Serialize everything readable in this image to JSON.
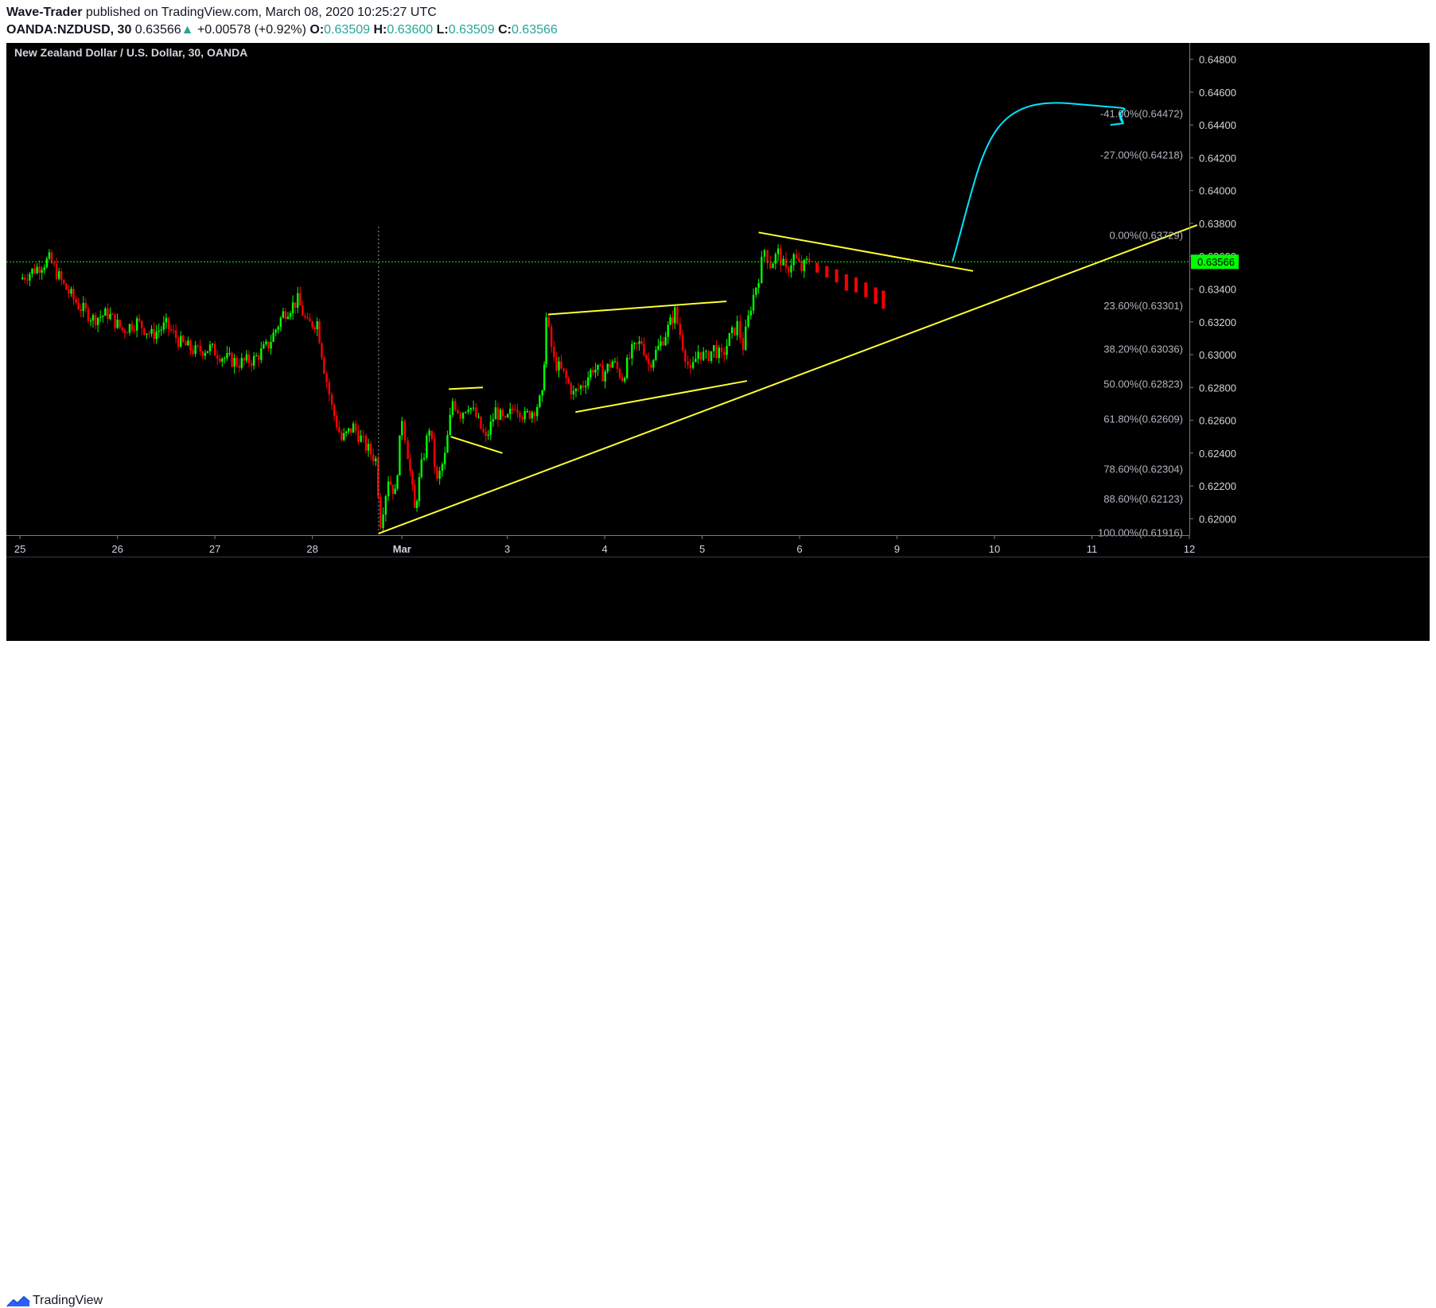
{
  "header": {
    "author": "Wave-Trader",
    "published_text": "published on TradingView.com, March 08, 2020 10:25:27 UTC",
    "symbol": "OANDA:NZDUSD, 30",
    "last": "0.63566",
    "arrow": "▲",
    "change": "+0.00578 (+0.92%)",
    "o_label": "O:",
    "o_value": "0.63509",
    "h_label": "H:",
    "h_value": "0.63600",
    "l_label": "L:",
    "l_value": "0.63509",
    "c_label": "C:",
    "c_value": "0.63566"
  },
  "footer": {
    "brand": "TradingView",
    "logo_icon": "tradingview-logo-icon"
  },
  "chart_data": {
    "type": "candlestick",
    "title": "New Zealand Dollar / U.S. Dollar, 30, OANDA",
    "colors": {
      "background": "#000000",
      "up": "#00ff00",
      "down": "#ff0000",
      "trendline": "#ffff33",
      "arrow": "#00e5ff",
      "price_line": "#00ff00",
      "price_tag": "#00ff00",
      "fib_text": "#b2b5be",
      "axis_text": "#d1d4dc"
    },
    "current_price": {
      "value": 0.63566,
      "label": "0.63566"
    },
    "y_axis": {
      "range": [
        0.619,
        0.649
      ],
      "ticks": [
        0.648,
        0.646,
        0.644,
        0.642,
        0.64,
        0.638,
        0.636,
        0.634,
        0.632,
        0.63,
        0.628,
        0.626,
        0.624,
        0.622,
        0.62
      ],
      "tick_labels": [
        "0.64800",
        "0.64600",
        "0.64400",
        "0.64200",
        "0.64000",
        "0.63800",
        "0.63600",
        "0.63400",
        "0.63200",
        "0.63000",
        "0.62800",
        "0.62600",
        "0.62400",
        "0.62200",
        "0.62000"
      ]
    },
    "x_axis": {
      "range": [
        -0.14,
        12.0
      ],
      "tick_values": [
        0,
        1,
        2,
        3,
        3.92,
        5,
        6,
        7,
        8,
        9,
        10,
        11,
        12
      ],
      "tick_labels": [
        "25",
        "26",
        "27",
        "28",
        "Mar",
        "3",
        "4",
        "5",
        "6",
        "9",
        "10",
        "11",
        "12"
      ],
      "note_days": "x is trading-day index: 0 = Feb 25; gap over weekend"
    },
    "fib_levels": [
      {
        "label": "-41.00%(0.64472)",
        "price": 0.64472
      },
      {
        "label": "-27.00%(0.64218)",
        "price": 0.64218
      },
      {
        "label": "0.00%(0.63729)",
        "price": 0.63729
      },
      {
        "label": "23.60%(0.63301)",
        "price": 0.63301
      },
      {
        "label": "38.20%(0.63036)",
        "price": 0.63036
      },
      {
        "label": "50.00%(0.62823)",
        "price": 0.62823
      },
      {
        "label": "61.80%(0.62609)",
        "price": 0.62609
      },
      {
        "label": "78.60%(0.62304)",
        "price": 0.62304
      },
      {
        "label": "88.60%(0.62123)",
        "price": 0.62123
      },
      {
        "label": "100.00%(0.61916)",
        "price": 0.61916
      }
    ],
    "close_path": [
      [
        0.0,
        0.6346
      ],
      [
        0.15,
        0.6352
      ],
      [
        0.3,
        0.6358
      ],
      [
        0.45,
        0.6342
      ],
      [
        0.6,
        0.633
      ],
      [
        0.75,
        0.6322
      ],
      [
        0.9,
        0.6325
      ],
      [
        1.05,
        0.6315
      ],
      [
        1.2,
        0.632
      ],
      [
        1.35,
        0.6312
      ],
      [
        1.5,
        0.6318
      ],
      [
        1.65,
        0.6307
      ],
      [
        1.8,
        0.6302
      ],
      [
        1.95,
        0.6304
      ],
      [
        2.1,
        0.6298
      ],
      [
        2.25,
        0.6295
      ],
      [
        2.4,
        0.6297
      ],
      [
        2.55,
        0.6306
      ],
      [
        2.7,
        0.6325
      ],
      [
        2.85,
        0.6333
      ],
      [
        2.95,
        0.6318
      ],
      [
        3.05,
        0.632
      ],
      [
        3.12,
        0.6292
      ],
      [
        3.2,
        0.6268
      ],
      [
        3.3,
        0.6248
      ],
      [
        3.42,
        0.6256
      ],
      [
        3.55,
        0.6244
      ],
      [
        3.65,
        0.6236
      ],
      [
        3.7,
        0.6198
      ],
      [
        3.78,
        0.6225
      ],
      [
        3.85,
        0.6215
      ],
      [
        3.92,
        0.6262
      ],
      [
        3.98,
        0.624
      ],
      [
        4.05,
        0.6205
      ],
      [
        4.12,
        0.6232
      ],
      [
        4.2,
        0.6256
      ],
      [
        4.28,
        0.6222
      ],
      [
        4.36,
        0.6238
      ],
      [
        4.44,
        0.6272
      ],
      [
        4.52,
        0.6264
      ],
      [
        4.6,
        0.627
      ],
      [
        4.68,
        0.6262
      ],
      [
        4.78,
        0.6248
      ],
      [
        4.88,
        0.6266
      ],
      [
        4.98,
        0.6258
      ],
      [
        5.08,
        0.627
      ],
      [
        5.18,
        0.6262
      ],
      [
        5.28,
        0.6267
      ],
      [
        5.36,
        0.6274
      ],
      [
        5.4,
        0.6322
      ],
      [
        5.48,
        0.6296
      ],
      [
        5.58,
        0.6288
      ],
      [
        5.68,
        0.6276
      ],
      [
        5.78,
        0.6282
      ],
      [
        5.88,
        0.6292
      ],
      [
        5.98,
        0.6288
      ],
      [
        6.08,
        0.6296
      ],
      [
        6.18,
        0.6286
      ],
      [
        6.28,
        0.6302
      ],
      [
        6.38,
        0.6308
      ],
      [
        6.45,
        0.6294
      ],
      [
        6.55,
        0.6304
      ],
      [
        6.65,
        0.6316
      ],
      [
        6.72,
        0.6326
      ],
      [
        6.8,
        0.6306
      ],
      [
        6.88,
        0.6288
      ],
      [
        6.96,
        0.6302
      ],
      [
        7.04,
        0.6298
      ],
      [
        7.12,
        0.6304
      ],
      [
        7.2,
        0.6298
      ],
      [
        7.28,
        0.631
      ],
      [
        7.36,
        0.6318
      ],
      [
        7.42,
        0.6305
      ],
      [
        7.5,
        0.633
      ],
      [
        7.58,
        0.6348
      ],
      [
        7.64,
        0.6364
      ],
      [
        7.7,
        0.6355
      ],
      [
        7.78,
        0.6362
      ],
      [
        7.86,
        0.635
      ],
      [
        7.94,
        0.636
      ],
      [
        8.02,
        0.6352
      ],
      [
        8.1,
        0.6358
      ]
    ],
    "projection_bars": [
      {
        "x": 8.18,
        "open": 0.6356,
        "close": 0.635
      },
      {
        "x": 8.28,
        "open": 0.6354,
        "close": 0.6347
      },
      {
        "x": 8.38,
        "open": 0.6352,
        "close": 0.6344
      },
      {
        "x": 8.48,
        "open": 0.6349,
        "close": 0.6339
      },
      {
        "x": 8.58,
        "open": 0.6347,
        "close": 0.6338
      },
      {
        "x": 8.68,
        "open": 0.6344,
        "close": 0.6335
      },
      {
        "x": 8.78,
        "open": 0.6341,
        "close": 0.6331
      },
      {
        "x": 8.86,
        "open": 0.6339,
        "close": 0.6328
      }
    ],
    "trendlines": [
      {
        "name": "main-support",
        "from": [
          3.68,
          0.6191
        ],
        "to": [
          12.08,
          0.6379
        ]
      },
      {
        "name": "small-flag-top",
        "from": [
          4.4,
          0.6279
        ],
        "to": [
          4.75,
          0.628
        ]
      },
      {
        "name": "small-flag-bottom",
        "from": [
          4.42,
          0.625
        ],
        "to": [
          4.95,
          0.624
        ]
      },
      {
        "name": "wedge-top",
        "from": [
          5.42,
          0.63245
        ],
        "to": [
          7.25,
          0.63325
        ]
      },
      {
        "name": "wedge-bottom",
        "from": [
          5.7,
          0.6265
        ],
        "to": [
          7.46,
          0.6284
        ]
      },
      {
        "name": "triangle-top",
        "from": [
          7.58,
          0.63745
        ],
        "to": [
          9.78,
          0.6351
        ]
      }
    ],
    "projection_arrow": {
      "from": [
        9.57,
        0.6357
      ],
      "peak": [
        10.8,
        0.6453
      ],
      "to": [
        11.32,
        0.6441
      ]
    },
    "crosshair_x": 3.68
  }
}
